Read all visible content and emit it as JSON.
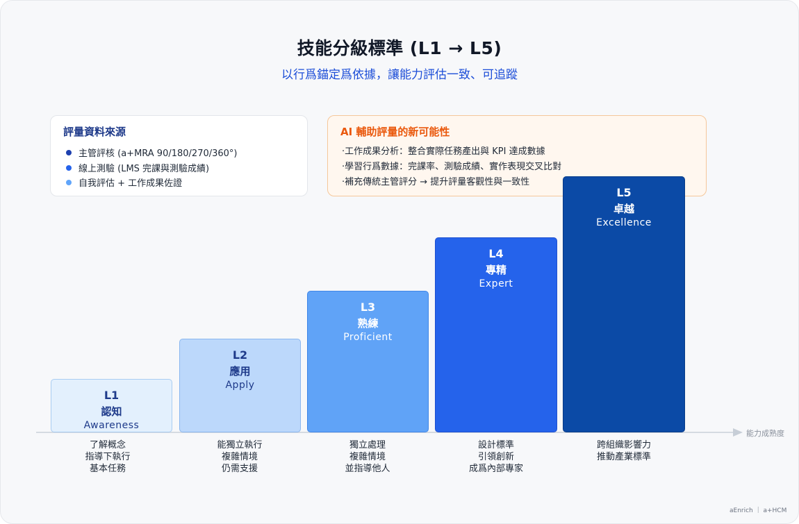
{
  "title": "技能分級標準 (L1 → L5)",
  "subtitle": "以行爲錨定爲依據，讓能力評估一致、可追蹤",
  "sources": {
    "heading": "評量資料來源",
    "items": [
      {
        "text": "主管評核 (a+MRA 90/180/270/360°)",
        "color": "#1e40af"
      },
      {
        "text": "線上測驗 (LMS 完課與測驗成績)",
        "color": "#2563eb"
      },
      {
        "text": "自我評估 + 工作成果佐證",
        "color": "#60a5fa"
      }
    ]
  },
  "ai": {
    "heading": "AI 輔助評量的新可能性",
    "items": [
      "‧工作成果分析：整合實際任務產出與 KPI 達成數據",
      "‧學習行爲數據：完課率、測驗成績、實作表現交叉比對",
      "‧補充傳統主管評分 → 提升評量客觀性與一致性"
    ]
  },
  "axis_label": "能力成熟度",
  "levels": [
    {
      "level": "L1",
      "name": "認知",
      "en": "Awareness",
      "fill": "#e3f0fd",
      "border": "#a9cdf2",
      "text": "#1e3a8a",
      "desc": [
        "了解概念",
        "指導下執行",
        "基本任務"
      ]
    },
    {
      "level": "L2",
      "name": "應用",
      "en": "Apply",
      "fill": "#bcd8fb",
      "border": "#8ab7ef",
      "text": "#1e3a8a",
      "desc": [
        "能獨立執行",
        "複雜情境",
        "仍需支援"
      ]
    },
    {
      "level": "L3",
      "name": "熟練",
      "en": "Proficient",
      "fill": "#60a3f7",
      "border": "#3f86e8",
      "text": "#ffffff",
      "desc": [
        "獨立處理",
        "複雜情境",
        "並指導他人"
      ]
    },
    {
      "level": "L4",
      "name": "專精",
      "en": "Expert",
      "fill": "#2563eb",
      "border": "#1d4fd0",
      "text": "#ffffff",
      "desc": [
        "設計標準",
        "引領創新",
        "成爲內部專家"
      ]
    },
    {
      "level": "L5",
      "name": "卓越",
      "en": "Excellence",
      "fill": "#0b4aa6",
      "border": "#083b88",
      "text": "#ffffff",
      "desc": [
        "跨組織影響力",
        "推動產業標準"
      ]
    }
  ],
  "footer": "aEnrich ｜ a+HCM"
}
